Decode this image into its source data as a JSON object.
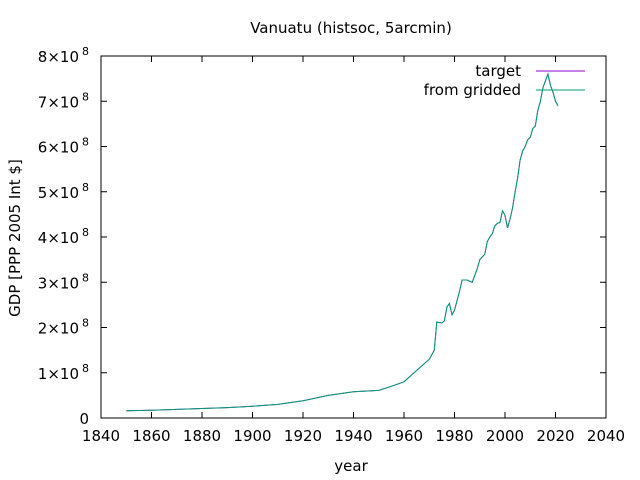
{
  "chart_data": {
    "type": "line",
    "title": "Vanuatu (histsoc, 5arcmin)",
    "xlabel": "year",
    "ylabel": "GDP [PPP 2005 Int $]",
    "xlim": [
      1840,
      2040
    ],
    "ylim": [
      0,
      800000000
    ],
    "x_ticks": [
      1840,
      1860,
      1880,
      1900,
      1920,
      1940,
      1960,
      1980,
      2000,
      2020,
      2040
    ],
    "x_tick_labels": [
      "1840",
      "1860",
      "1880",
      "1900",
      "1920",
      "1940",
      "1960",
      "1980",
      "2000",
      "2020",
      "2040"
    ],
    "y_ticks": [
      0,
      100000000,
      200000000,
      300000000,
      400000000,
      500000000,
      600000000,
      700000000,
      800000000
    ],
    "y_tick_labels": [
      {
        "mant": "0",
        "exp": ""
      },
      {
        "mant": "1×10",
        "exp": "8"
      },
      {
        "mant": "2×10",
        "exp": "8"
      },
      {
        "mant": "3×10",
        "exp": "8"
      },
      {
        "mant": "4×10",
        "exp": "8"
      },
      {
        "mant": "5×10",
        "exp": "8"
      },
      {
        "mant": "6×10",
        "exp": "8"
      },
      {
        "mant": "7×10",
        "exp": "8"
      },
      {
        "mant": "8×10",
        "exp": "8"
      }
    ],
    "grid": false,
    "legend_position": "top-right",
    "series": [
      {
        "name": "target",
        "color": "#9400d3",
        "x": [
          1850,
          1860,
          1870,
          1880,
          1890,
          1900,
          1910,
          1920,
          1930,
          1940,
          1950,
          1955,
          1960,
          1965,
          1970,
          1972,
          1973,
          1975,
          1976,
          1977,
          1978,
          1979,
          1980,
          1982,
          1983,
          1985,
          1987,
          1989,
          1990,
          1992,
          1993,
          1994,
          1995,
          1996,
          1997,
          1998,
          1999,
          2000,
          2001,
          2002,
          2003,
          2004,
          2005,
          2006,
          2007,
          2008,
          2009,
          2010,
          2011,
          2012,
          2013,
          2014,
          2015,
          2016,
          2017,
          2018,
          2019,
          2020,
          2021
        ],
        "y": [
          16000000,
          17000000,
          19000000,
          21000000,
          23000000,
          26000000,
          30000000,
          38000000,
          50000000,
          58000000,
          61000000,
          70000000,
          80000000,
          105000000,
          130000000,
          150000000,
          212000000,
          210000000,
          215000000,
          245000000,
          253000000,
          228000000,
          238000000,
          280000000,
          305000000,
          305000000,
          300000000,
          330000000,
          350000000,
          362000000,
          390000000,
          400000000,
          408000000,
          425000000,
          430000000,
          432000000,
          458000000,
          448000000,
          420000000,
          440000000,
          465000000,
          500000000,
          530000000,
          570000000,
          590000000,
          600000000,
          615000000,
          620000000,
          640000000,
          645000000,
          680000000,
          700000000,
          730000000,
          745000000,
          760000000,
          735000000,
          720000000,
          700000000,
          690000000
        ]
      },
      {
        "name": "from gridded",
        "color": "#009e73",
        "x": [
          1850,
          1860,
          1870,
          1880,
          1890,
          1900,
          1910,
          1920,
          1930,
          1940,
          1950,
          1955,
          1960,
          1965,
          1970,
          1972,
          1973,
          1975,
          1976,
          1977,
          1978,
          1979,
          1980,
          1982,
          1983,
          1985,
          1987,
          1989,
          1990,
          1992,
          1993,
          1994,
          1995,
          1996,
          1997,
          1998,
          1999,
          2000,
          2001,
          2002,
          2003,
          2004,
          2005,
          2006,
          2007,
          2008,
          2009,
          2010,
          2011,
          2012,
          2013,
          2014,
          2015,
          2016,
          2017,
          2018,
          2019,
          2020,
          2021
        ],
        "y": [
          16000000,
          17000000,
          19000000,
          21000000,
          23000000,
          26000000,
          30000000,
          38000000,
          50000000,
          58000000,
          61000000,
          70000000,
          80000000,
          105000000,
          130000000,
          150000000,
          212000000,
          210000000,
          215000000,
          245000000,
          253000000,
          228000000,
          238000000,
          280000000,
          305000000,
          305000000,
          300000000,
          330000000,
          350000000,
          362000000,
          390000000,
          400000000,
          408000000,
          425000000,
          430000000,
          432000000,
          458000000,
          448000000,
          420000000,
          440000000,
          465000000,
          500000000,
          530000000,
          570000000,
          590000000,
          600000000,
          615000000,
          620000000,
          640000000,
          645000000,
          680000000,
          700000000,
          730000000,
          745000000,
          760000000,
          735000000,
          720000000,
          700000000,
          690000000
        ]
      }
    ]
  }
}
